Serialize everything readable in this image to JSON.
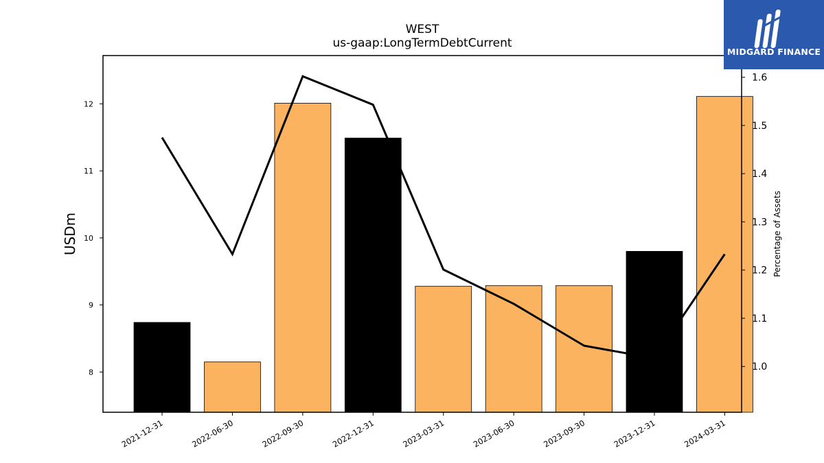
{
  "chart_data": {
    "type": "bar",
    "title": "WEST",
    "subtitle": "us-gaap:LongTermDebtCurrent",
    "ylabel": "USDm",
    "y2label": "Percentage of Assets",
    "categories": [
      "2021-12-31",
      "2022-06-30",
      "2022-09-30",
      "2022-12-31",
      "2023-03-31",
      "2023-06-30",
      "2023-09-30",
      "2023-12-31",
      "2024-03-31"
    ],
    "bar_values": [
      8.74,
      8.15,
      12.01,
      11.49,
      9.28,
      9.29,
      9.29,
      9.8,
      12.11
    ],
    "bar_colors": [
      "#000000",
      "#fbb360",
      "#fbb360",
      "#000000",
      "#fbb360",
      "#fbb360",
      "#fbb360",
      "#000000",
      "#fbb360"
    ],
    "line_values": [
      1.475,
      1.233,
      1.602,
      1.543,
      1.201,
      1.13,
      1.043,
      1.017,
      1.233
    ],
    "line_color": "#000000",
    "ylim": [
      7.4,
      12.72
    ],
    "yticks": [
      8,
      9,
      10,
      11,
      12
    ],
    "y2lim": [
      0.905,
      1.645
    ],
    "y2ticks": [
      1.0,
      1.1,
      1.2,
      1.3,
      1.4,
      1.5,
      1.6
    ]
  },
  "logo": {
    "text": "MIDGARD FINANCE",
    "color": "#2a59ad"
  }
}
